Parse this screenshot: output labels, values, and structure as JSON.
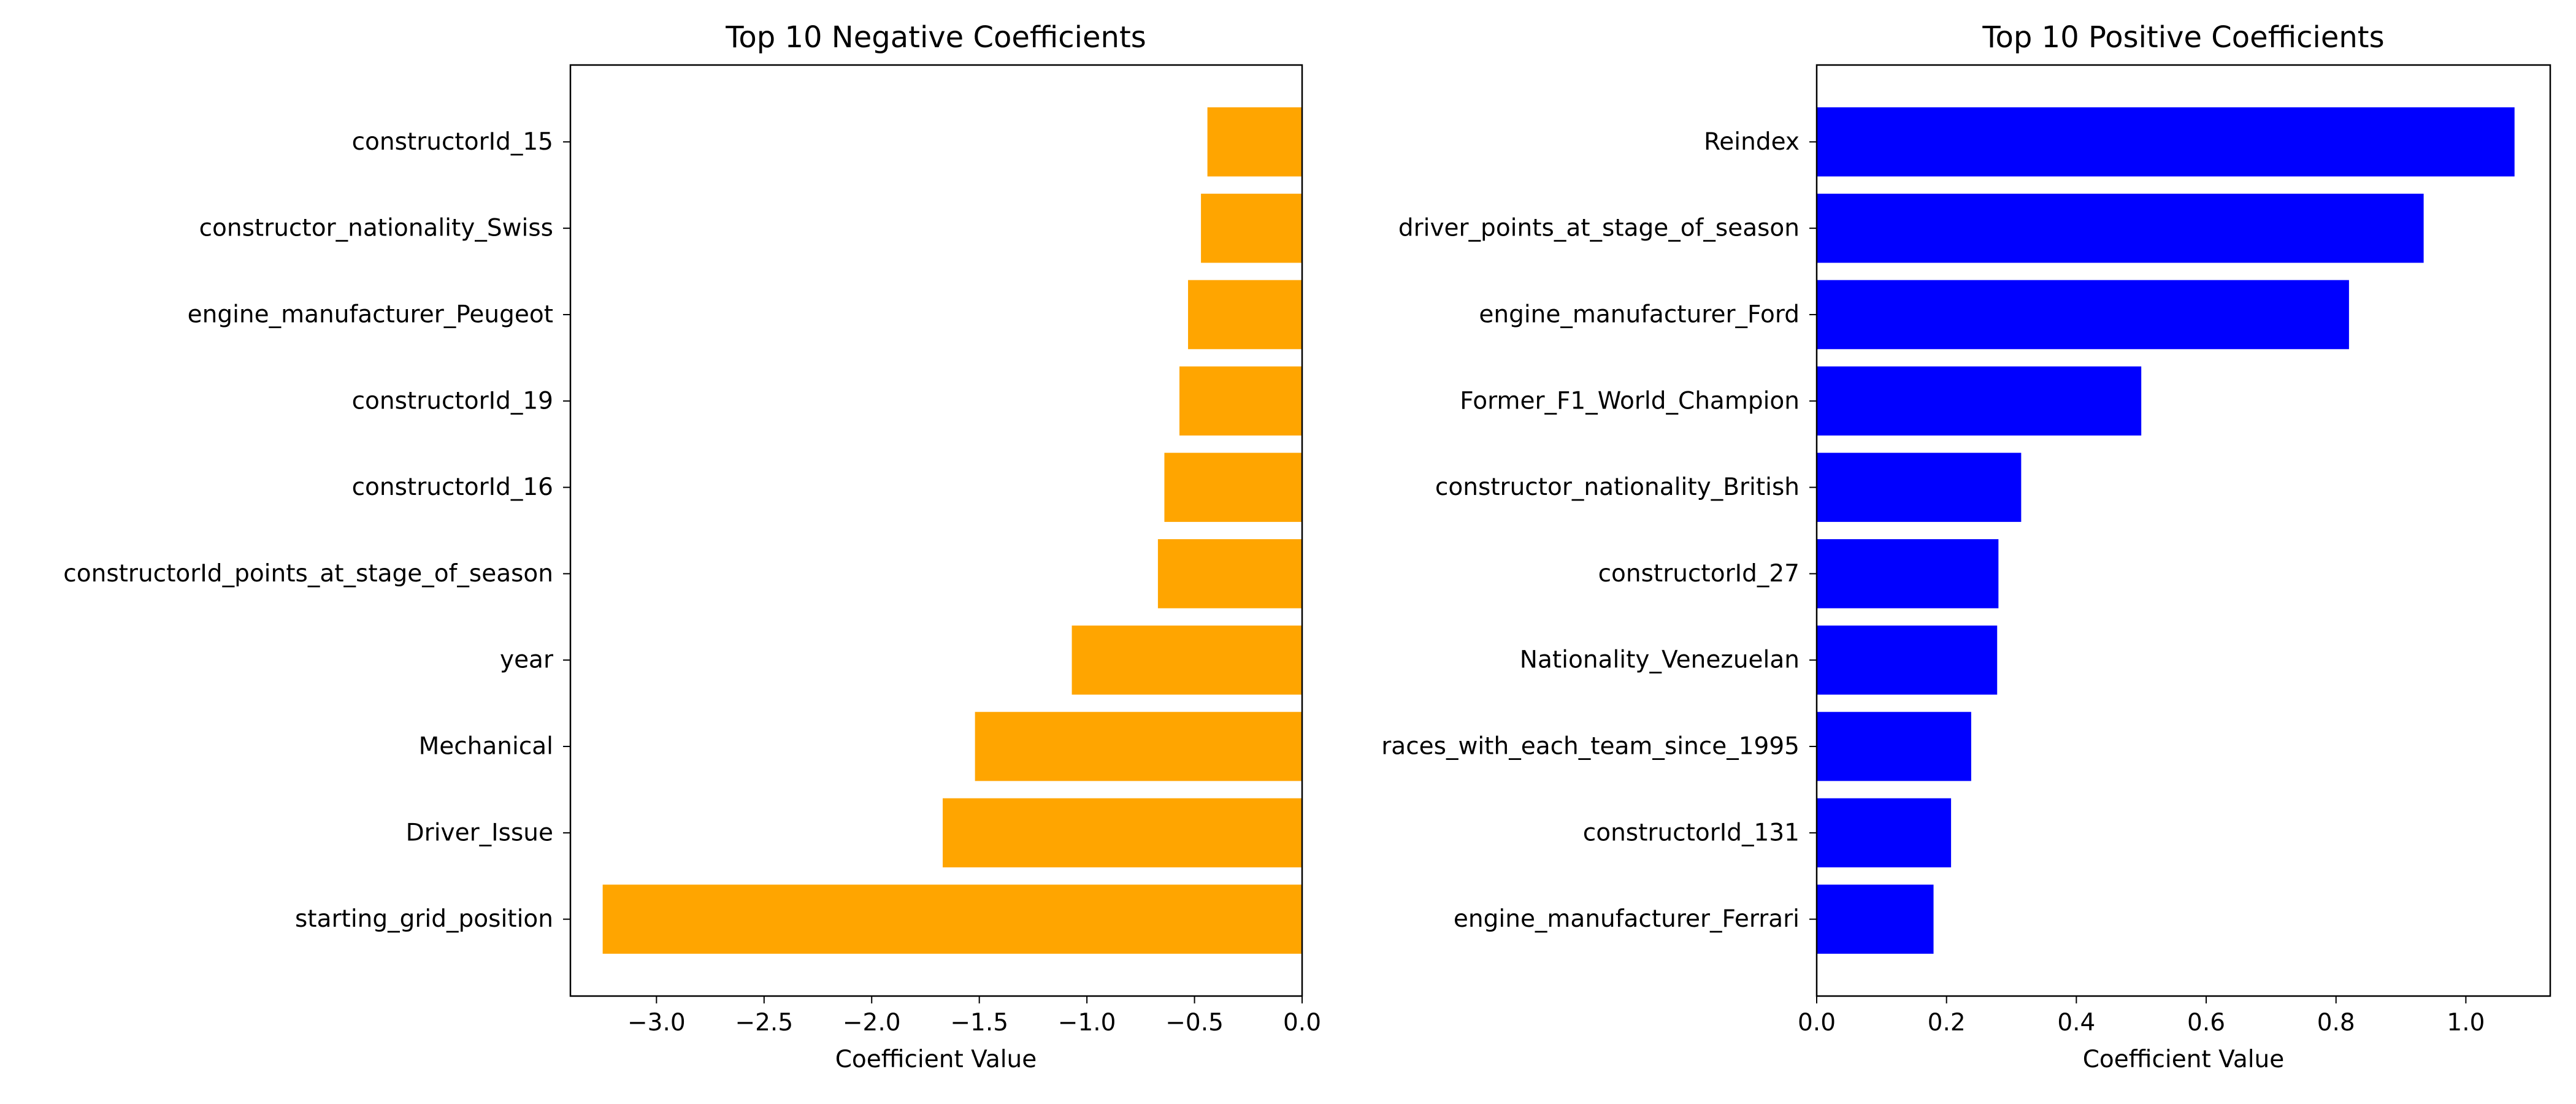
{
  "chart_data": [
    {
      "type": "bar",
      "orientation": "horizontal",
      "title": "Top 10 Negative Coefficients",
      "xlabel": "Coefficient Value",
      "ylabel": "",
      "xlim": [
        -3.4,
        0.0
      ],
      "xticks": [
        -3.0,
        -2.5,
        -2.0,
        -1.5,
        -1.0,
        -0.5,
        0.0
      ],
      "xtick_labels": [
        "−3.0",
        "−2.5",
        "−2.0",
        "−1.5",
        "−1.0",
        "−0.5",
        "0.0"
      ],
      "grid": false,
      "bar_color": "#FFA500",
      "categories": [
        "constructorId_15",
        "constructor_nationality_Swiss",
        "engine_manufacturer_Peugeot",
        "constructorId_19",
        "constructorId_16",
        "constructorId_points_at_stage_of_season",
        "year",
        "Mechanical",
        "Driver_Issue",
        "starting_grid_position"
      ],
      "values": [
        -0.44,
        -0.47,
        -0.53,
        -0.57,
        -0.64,
        -0.67,
        -1.07,
        -1.52,
        -1.67,
        -3.25
      ]
    },
    {
      "type": "bar",
      "orientation": "horizontal",
      "title": "Top 10 Positive Coefficients",
      "xlabel": "Coefficient Value",
      "ylabel": "",
      "xlim": [
        0.0,
        1.13
      ],
      "xticks": [
        0.0,
        0.2,
        0.4,
        0.6,
        0.8,
        1.0
      ],
      "xtick_labels": [
        "0.0",
        "0.2",
        "0.4",
        "0.6",
        "0.8",
        "1.0"
      ],
      "grid": false,
      "bar_color": "#0000FF",
      "categories": [
        "Reindex",
        "driver_points_at_stage_of_season",
        "engine_manufacturer_Ford",
        "Former_F1_World_Champion",
        "constructor_nationality_British",
        "constructorId_27",
        "Nationality_Venezuelan",
        "races_with_each_team_since_1995",
        "constructorId_131",
        "engine_manufacturer_Ferrari"
      ],
      "values": [
        1.075,
        0.935,
        0.82,
        0.5,
        0.315,
        0.28,
        0.278,
        0.238,
        0.207,
        0.18
      ]
    }
  ]
}
